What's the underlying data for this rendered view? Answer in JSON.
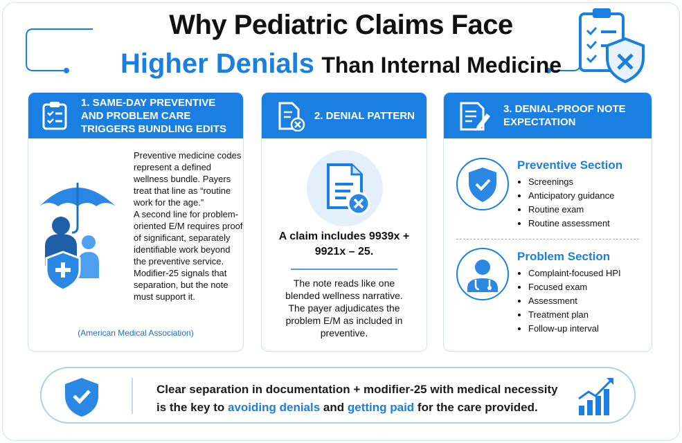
{
  "header": {
    "title_line1": "Why Pediatric Claims Face",
    "title_highlight": "Higher Denials",
    "title_rest": "Than Internal Medicine"
  },
  "cards": [
    {
      "heading": "1. SAME-DAY PREVENTIVE AND PROBLEM CARE TRIGGERS BUNDLING EDITS",
      "paragraphs": [
        "Preventive medicine codes represent a defined wellness bundle. Payers treat that line as “routine work for the age.”",
        "A second line for problem-oriented E/M requires proof of significant, separately identifiable work beyond the preventive service.",
        "Modifier-25 signals that separation, but the note must support it."
      ],
      "source": "(American Medical Association)"
    },
    {
      "heading": "2. DENIAL PATTERN",
      "claim": "A claim includes 9939x + 9921x – 25.",
      "body": "The note reads like one blended wellness narrative. The payer adjudicates the problem E/M as included in preventive."
    },
    {
      "heading": "3. DENIAL-PROOF NOTE EXPECTATION",
      "sections": [
        {
          "title": "Preventive Section",
          "items": [
            "Screenings",
            "Anticipatory guidance",
            "Routine exam",
            "Routine assessment"
          ]
        },
        {
          "title": "Problem Section",
          "items": [
            "Complaint-focused HPI",
            "Focused exam",
            "Assessment",
            "Treatment plan",
            "Follow-up interval"
          ]
        }
      ]
    }
  ],
  "footer": {
    "parts": [
      "Clear separation in documentation + modifier-25 with medical necessity is the key to ",
      "avoiding denials",
      " and ",
      "getting paid",
      " for the care provided."
    ]
  }
}
